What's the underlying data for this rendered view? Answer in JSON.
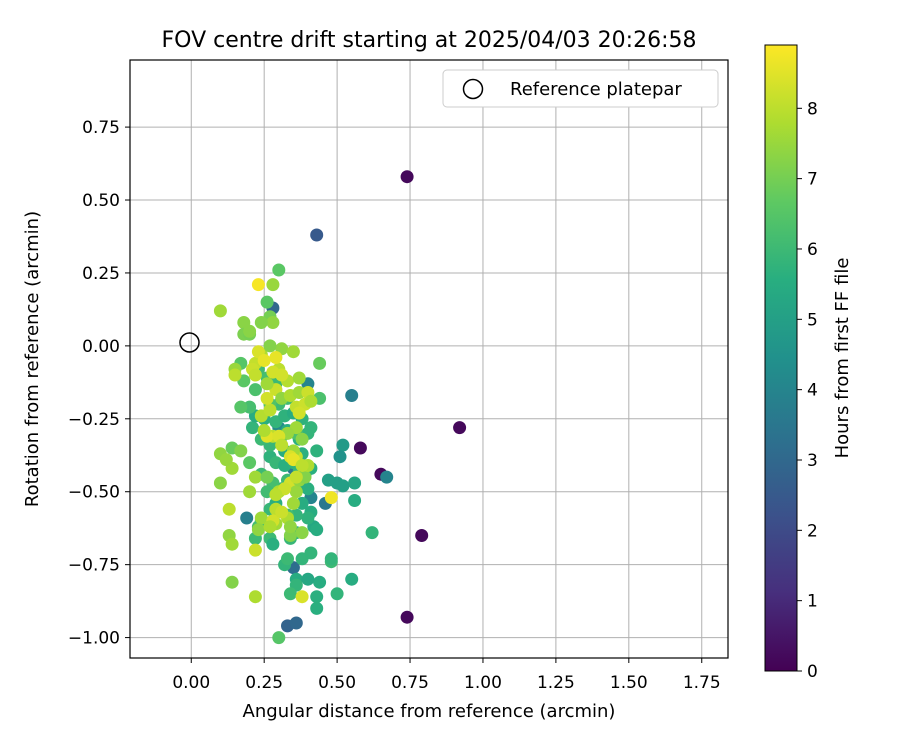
{
  "chart_data": {
    "type": "scatter",
    "title": "FOV centre drift starting at 2025/04/03 20:26:58",
    "xlabel": "Angular distance from reference (arcmin)",
    "ylabel": "Rotation from reference (arcmin)",
    "xlim": [
      -0.21,
      1.84
    ],
    "ylim": [
      -1.07,
      0.98
    ],
    "xticks": [
      0.0,
      0.25,
      0.5,
      0.75,
      1.0,
      1.25,
      1.5,
      1.75
    ],
    "xtick_labels": [
      "0.00",
      "0.25",
      "0.50",
      "0.75",
      "1.00",
      "1.25",
      "1.50",
      "1.75"
    ],
    "yticks": [
      -1.0,
      -0.75,
      -0.5,
      -0.25,
      0.0,
      0.25,
      0.5,
      0.75
    ],
    "ytick_labels": [
      "−1.00",
      "−0.75",
      "−0.50",
      "−0.25",
      "0.00",
      "0.25",
      "0.50",
      "0.75"
    ],
    "grid": true,
    "colormap": "viridis",
    "legend": {
      "placement": "upper right",
      "entries": [
        {
          "label": "Reference platepar",
          "marker": "open-circle"
        }
      ]
    },
    "reference_point": {
      "x": 0.0,
      "y": 0.0
    },
    "colorbar": {
      "label": "Hours from first FF file",
      "min": 0,
      "max": 8.9,
      "ticks": [
        0,
        1,
        2,
        3,
        4,
        5,
        6,
        7,
        8
      ],
      "tick_labels": [
        "0",
        "1",
        "2",
        "3",
        "4",
        "5",
        "6",
        "7",
        "8"
      ]
    },
    "series": [
      {
        "points": [
          [
            0.74,
            0.58,
            0.2
          ],
          [
            0.92,
            -0.28,
            0.2
          ],
          [
            0.58,
            -0.35,
            0.2
          ],
          [
            0.65,
            -0.44,
            0.2
          ],
          [
            0.79,
            -0.65,
            0.2
          ],
          [
            0.74,
            -0.93,
            0.2
          ],
          [
            0.43,
            0.38,
            2.5
          ],
          [
            0.28,
            0.13,
            3.0
          ],
          [
            0.55,
            -0.17,
            3.8
          ],
          [
            0.67,
            -0.45,
            4.0
          ],
          [
            0.46,
            -0.54,
            3.5
          ],
          [
            0.33,
            -0.96,
            2.8
          ],
          [
            0.36,
            -0.95,
            3.0
          ],
          [
            0.19,
            -0.59,
            3.8
          ],
          [
            0.35,
            -0.76,
            3.2
          ],
          [
            0.41,
            -0.52,
            4.0
          ],
          [
            0.4,
            -0.13,
            4.0
          ],
          [
            0.3,
            -0.28,
            4.2
          ],
          [
            0.35,
            -0.42,
            3.5
          ],
          [
            0.52,
            -0.34,
            4.8
          ],
          [
            0.51,
            -0.38,
            4.5
          ],
          [
            0.56,
            -0.47,
            5.2
          ],
          [
            0.5,
            -0.47,
            5.0
          ],
          [
            0.47,
            -0.46,
            5.0
          ],
          [
            0.52,
            -0.48,
            5.0
          ],
          [
            0.56,
            -0.53,
            5.5
          ],
          [
            0.62,
            -0.64,
            5.8
          ],
          [
            0.41,
            -0.57,
            5.5
          ],
          [
            0.42,
            -0.62,
            5.3
          ],
          [
            0.43,
            -0.63,
            5.5
          ],
          [
            0.48,
            -0.74,
            6.0
          ],
          [
            0.48,
            -0.73,
            5.8
          ],
          [
            0.44,
            -0.81,
            5.5
          ],
          [
            0.55,
            -0.8,
            5.5
          ],
          [
            0.5,
            -0.85,
            5.8
          ],
          [
            0.43,
            -0.86,
            5.6
          ],
          [
            0.43,
            -0.9,
            5.6
          ],
          [
            0.36,
            -0.8,
            5.5
          ],
          [
            0.4,
            -0.8,
            5.3
          ],
          [
            0.36,
            -0.82,
            5.8
          ],
          [
            0.34,
            -0.85,
            6.0
          ],
          [
            0.3,
            -1.0,
            6.5
          ],
          [
            0.32,
            -0.75,
            5.8
          ],
          [
            0.33,
            -0.73,
            6.0
          ],
          [
            0.38,
            -0.73,
            5.8
          ],
          [
            0.41,
            -0.71,
            5.8
          ],
          [
            0.36,
            -0.64,
            5.8
          ],
          [
            0.34,
            -0.66,
            5.9
          ],
          [
            0.27,
            -0.66,
            6.0
          ],
          [
            0.28,
            -0.68,
            5.6
          ],
          [
            0.22,
            -0.66,
            6.0
          ],
          [
            0.23,
            -0.62,
            6.2
          ],
          [
            0.24,
            -0.6,
            6.1
          ],
          [
            0.27,
            -0.56,
            5.9
          ],
          [
            0.29,
            -0.54,
            5.6
          ],
          [
            0.31,
            -0.49,
            5.8
          ],
          [
            0.33,
            -0.46,
            6.0
          ],
          [
            0.38,
            -0.48,
            5.7
          ],
          [
            0.4,
            -0.49,
            5.6
          ],
          [
            0.38,
            -0.54,
            5.5
          ],
          [
            0.4,
            -0.59,
            5.7
          ],
          [
            0.36,
            -0.58,
            5.8
          ],
          [
            0.33,
            -0.58,
            6.1
          ],
          [
            0.28,
            -0.47,
            6.2
          ],
          [
            0.26,
            -0.5,
            6.1
          ],
          [
            0.24,
            -0.44,
            6.0
          ],
          [
            0.27,
            -0.38,
            5.7
          ],
          [
            0.29,
            -0.4,
            5.9
          ],
          [
            0.32,
            -0.41,
            5.6
          ],
          [
            0.35,
            -0.4,
            5.7
          ],
          [
            0.37,
            -0.43,
            5.8
          ],
          [
            0.39,
            -0.44,
            5.5
          ],
          [
            0.41,
            -0.42,
            5.6
          ],
          [
            0.43,
            -0.36,
            5.7
          ],
          [
            0.4,
            -0.3,
            5.8
          ],
          [
            0.37,
            -0.32,
            5.6
          ],
          [
            0.33,
            -0.29,
            5.5
          ],
          [
            0.31,
            -0.31,
            5.8
          ],
          [
            0.27,
            -0.34,
            5.9
          ],
          [
            0.24,
            -0.32,
            6.0
          ],
          [
            0.21,
            -0.28,
            5.8
          ],
          [
            0.22,
            -0.24,
            5.5
          ],
          [
            0.25,
            -0.25,
            5.6
          ],
          [
            0.29,
            -0.26,
            5.8
          ],
          [
            0.32,
            -0.24,
            5.7
          ],
          [
            0.35,
            -0.23,
            5.5
          ],
          [
            0.38,
            -0.25,
            5.7
          ],
          [
            0.41,
            -0.28,
            5.8
          ],
          [
            0.38,
            -0.37,
            5.6
          ],
          [
            0.32,
            -0.36,
            5.5
          ],
          [
            0.3,
            -0.2,
            6.0
          ],
          [
            0.33,
            -0.18,
            6.1
          ],
          [
            0.29,
            -0.13,
            6.0
          ],
          [
            0.26,
            -0.11,
            6.2
          ],
          [
            0.23,
            -0.08,
            6.1
          ],
          [
            0.22,
            -0.15,
            6.3
          ],
          [
            0.2,
            -0.21,
            6.2
          ],
          [
            0.17,
            -0.21,
            6.5
          ],
          [
            0.17,
            -0.06,
            6.5
          ],
          [
            0.18,
            -0.12,
            6.6
          ],
          [
            0.27,
            -0.2,
            6.4
          ],
          [
            0.36,
            -0.3,
            6.3
          ],
          [
            0.44,
            -0.18,
            6.3
          ],
          [
            0.44,
            -0.06,
            6.8
          ],
          [
            0.3,
            0.26,
            6.6
          ],
          [
            0.26,
            0.15,
            6.6
          ],
          [
            0.28,
            0.21,
            7.5
          ],
          [
            0.27,
            0.1,
            7.0
          ],
          [
            0.28,
            0.08,
            7.4
          ],
          [
            0.24,
            0.08,
            7.2
          ],
          [
            0.18,
            0.08,
            7.3
          ],
          [
            0.18,
            0.04,
            7.1
          ],
          [
            0.2,
            0.04,
            7.0
          ],
          [
            0.1,
            0.12,
            7.6
          ],
          [
            0.15,
            -0.08,
            7.5
          ],
          [
            0.14,
            -0.35,
            6.8
          ],
          [
            0.17,
            -0.36,
            7.2
          ],
          [
            0.14,
            -0.42,
            7.6
          ],
          [
            0.1,
            -0.37,
            7.4
          ],
          [
            0.12,
            -0.39,
            7.5
          ],
          [
            0.1,
            -0.47,
            7.3
          ],
          [
            0.2,
            -0.4,
            6.6
          ],
          [
            0.2,
            -0.5,
            7.6
          ],
          [
            0.13,
            -0.56,
            8.0
          ],
          [
            0.13,
            -0.65,
            7.4
          ],
          [
            0.14,
            -0.68,
            7.6
          ],
          [
            0.14,
            -0.81,
            7.2
          ],
          [
            0.22,
            -0.7,
            8.2
          ],
          [
            0.22,
            -0.86,
            7.8
          ],
          [
            0.22,
            -0.45,
            7.6
          ],
          [
            0.26,
            -0.45,
            7.0
          ],
          [
            0.24,
            -0.59,
            7.6
          ],
          [
            0.23,
            -0.63,
            7.4
          ],
          [
            0.29,
            -0.61,
            7.6
          ],
          [
            0.29,
            -0.56,
            8.0
          ],
          [
            0.3,
            -0.5,
            7.8
          ],
          [
            0.34,
            -0.47,
            8.3
          ],
          [
            0.36,
            -0.5,
            7.5
          ],
          [
            0.38,
            -0.64,
            7.3
          ],
          [
            0.34,
            -0.65,
            7.2
          ],
          [
            0.38,
            -0.86,
            8.4
          ],
          [
            0.33,
            -0.59,
            7.8
          ],
          [
            0.34,
            -0.62,
            7.4
          ],
          [
            0.35,
            -0.54,
            7.6
          ],
          [
            0.37,
            -0.46,
            7.4
          ],
          [
            0.39,
            -0.45,
            7.2
          ],
          [
            0.4,
            -0.41,
            7.8
          ],
          [
            0.36,
            -0.38,
            8.1
          ],
          [
            0.35,
            -0.36,
            7.6
          ],
          [
            0.38,
            -0.32,
            7.3
          ],
          [
            0.36,
            -0.28,
            7.6
          ],
          [
            0.33,
            -0.3,
            7.5
          ],
          [
            0.28,
            -0.31,
            8.0
          ],
          [
            0.26,
            -0.31,
            8.5
          ],
          [
            0.25,
            -0.29,
            7.8
          ],
          [
            0.24,
            -0.24,
            7.9
          ],
          [
            0.27,
            -0.22,
            8.0
          ],
          [
            0.26,
            -0.18,
            8.3
          ],
          [
            0.29,
            -0.15,
            8.2
          ],
          [
            0.31,
            -0.18,
            7.4
          ],
          [
            0.34,
            -0.17,
            7.8
          ],
          [
            0.36,
            -0.21,
            8.1
          ],
          [
            0.39,
            -0.2,
            8.2
          ],
          [
            0.37,
            -0.16,
            7.6
          ],
          [
            0.33,
            -0.12,
            7.9
          ],
          [
            0.3,
            -0.08,
            8.0
          ],
          [
            0.31,
            -0.01,
            7.4
          ],
          [
            0.29,
            -0.04,
            8.6
          ],
          [
            0.24,
            -0.03,
            7.8
          ],
          [
            0.22,
            -0.06,
            8.1
          ],
          [
            0.23,
            -0.02,
            8.4
          ],
          [
            0.27,
            0.0,
            7.2
          ],
          [
            0.25,
            -0.05,
            8.6
          ],
          [
            0.2,
            0.05,
            7.3
          ],
          [
            0.15,
            -0.1,
            8.0
          ],
          [
            0.21,
            -0.08,
            8.2
          ],
          [
            0.23,
            0.21,
            8.8
          ],
          [
            0.22,
            -0.1,
            8.1
          ],
          [
            0.26,
            -0.13,
            7.6
          ],
          [
            0.28,
            -0.09,
            8.3
          ],
          [
            0.31,
            -0.1,
            8.3
          ],
          [
            0.35,
            -0.02,
            7.6
          ],
          [
            0.37,
            -0.11,
            7.6
          ],
          [
            0.4,
            -0.16,
            8.2
          ],
          [
            0.41,
            -0.19,
            7.8
          ],
          [
            0.37,
            -0.23,
            8.3
          ],
          [
            0.3,
            -0.31,
            8.4
          ],
          [
            0.31,
            -0.34,
            8.0
          ],
          [
            0.34,
            -0.38,
            8.4
          ],
          [
            0.35,
            -0.39,
            8.6
          ],
          [
            0.38,
            -0.41,
            8.0
          ],
          [
            0.48,
            -0.52,
            8.7
          ],
          [
            0.36,
            -0.45,
            8.1
          ],
          [
            0.32,
            -0.49,
            8.2
          ],
          [
            0.29,
            -0.51,
            8.0
          ],
          [
            0.28,
            -0.6,
            8.3
          ],
          [
            0.31,
            -0.57,
            8.2
          ],
          [
            0.27,
            -0.62,
            7.8
          ]
        ]
      }
    ]
  }
}
